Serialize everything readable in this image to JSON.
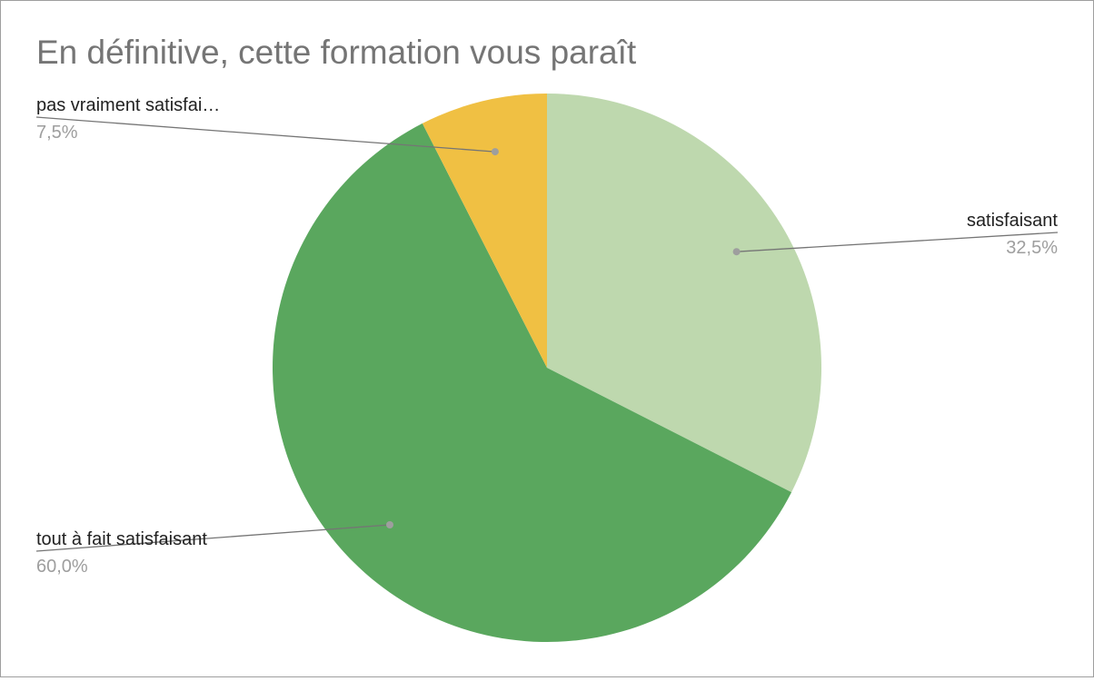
{
  "chart_data": {
    "type": "pie",
    "title": "En définitive, cette formation vous paraît",
    "slices": [
      {
        "label": "satisfaisant",
        "value": 32.5,
        "value_label": "32,5%",
        "color": "#bed8ae"
      },
      {
        "label": "tout à fait satisfaisant",
        "value": 60.0,
        "value_label": "60,0%",
        "color": "#5aa75e"
      },
      {
        "label": "pas vraiment satisfai…",
        "value": 7.5,
        "value_label": "7,5%",
        "color": "#f0c043"
      }
    ],
    "start_angle": "12 o'clock",
    "direction": "clockwise",
    "legend": "none"
  }
}
